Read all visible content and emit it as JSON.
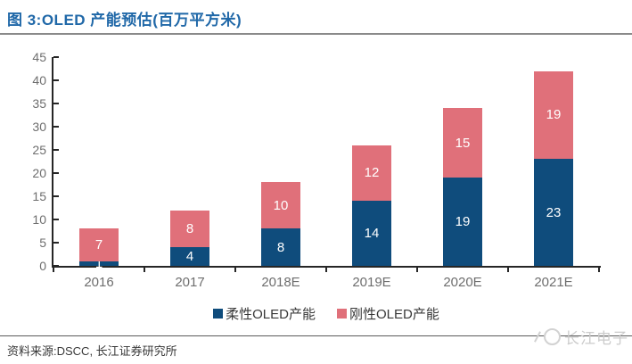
{
  "header": {
    "title": "图 3:OLED 产能预估(百万平方米)"
  },
  "chart_data": {
    "type": "bar",
    "stacked": true,
    "title": "OLED 产能预估(百万平方米)",
    "categories": [
      "2016",
      "2017",
      "2018E",
      "2019E",
      "2020E",
      "2021E"
    ],
    "series": [
      {
        "name": "柔性OLED产能",
        "color": "#0F4C7C",
        "values": [
          1,
          4,
          8,
          14,
          19,
          23
        ]
      },
      {
        "name": "刚性OLED产能",
        "color": "#E0707A",
        "values": [
          7,
          8,
          10,
          12,
          15,
          19
        ]
      }
    ],
    "ylim": [
      0,
      45
    ],
    "yticks": [
      0,
      5,
      10,
      15,
      20,
      25,
      30,
      35,
      40,
      45
    ],
    "xlabel": "",
    "ylabel": "",
    "grid": false,
    "legend_position": "bottom",
    "value_labels_color": "#FFFFFF"
  },
  "footer": {
    "source_text": "资料来源:DSCC, 长江证券研究所",
    "watermark": "长江电子"
  },
  "colors": {
    "title": "#2068A8",
    "axis": "#262626",
    "tick_label": "#6E6E6E",
    "flexible_blue": "#0F4C7C",
    "rigid_pink": "#E0707A",
    "watermark_gray": "#CCCCCC"
  }
}
